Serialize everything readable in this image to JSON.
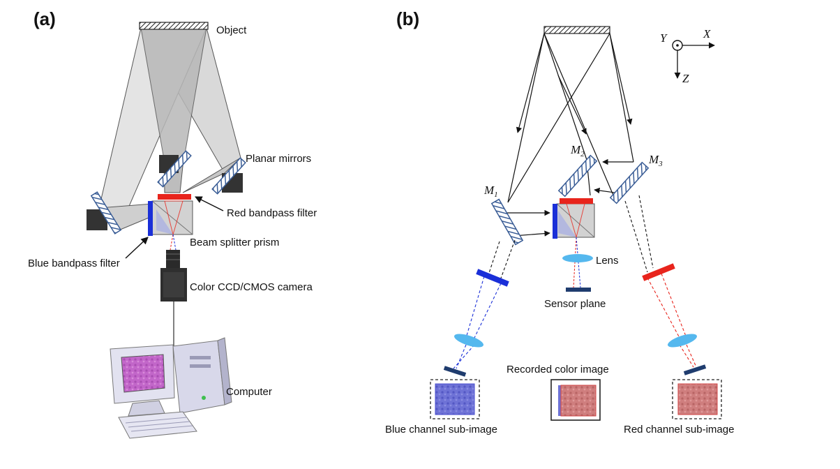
{
  "panels": {
    "a": {
      "letter": "(a)",
      "labels": {
        "object": "Object",
        "planar_mirrors": "Planar mirrors",
        "red_filter": "Red bandpass filter",
        "beam_splitter": "Beam splitter prism",
        "blue_filter": "Blue bandpass filter",
        "camera": "Color CCD/CMOS camera",
        "computer": "Computer"
      }
    },
    "b": {
      "letter": "(b)",
      "mirrors": {
        "m1": "M",
        "m1_sub": "1",
        "m2": "M",
        "m2_sub": "2",
        "m3": "M",
        "m3_sub": "3"
      },
      "axes": {
        "y": "Y",
        "x": "X",
        "z": "Z"
      },
      "labels": {
        "lens": "Lens",
        "sensor_plane": "Sensor plane",
        "recorded_image": "Recorded color image",
        "blue_subimage": "Blue channel sub-image",
        "red_subimage": "Red channel sub-image"
      }
    }
  },
  "colors": {
    "mirror": "#3a5d96",
    "red_filter": "#e8241c",
    "blue_filter": "#1a2fd8",
    "lens": "#55b8ee",
    "sensor": "#1f3c6e",
    "blue_image": "#6e72d6",
    "red_image": "#cf7e7e"
  }
}
